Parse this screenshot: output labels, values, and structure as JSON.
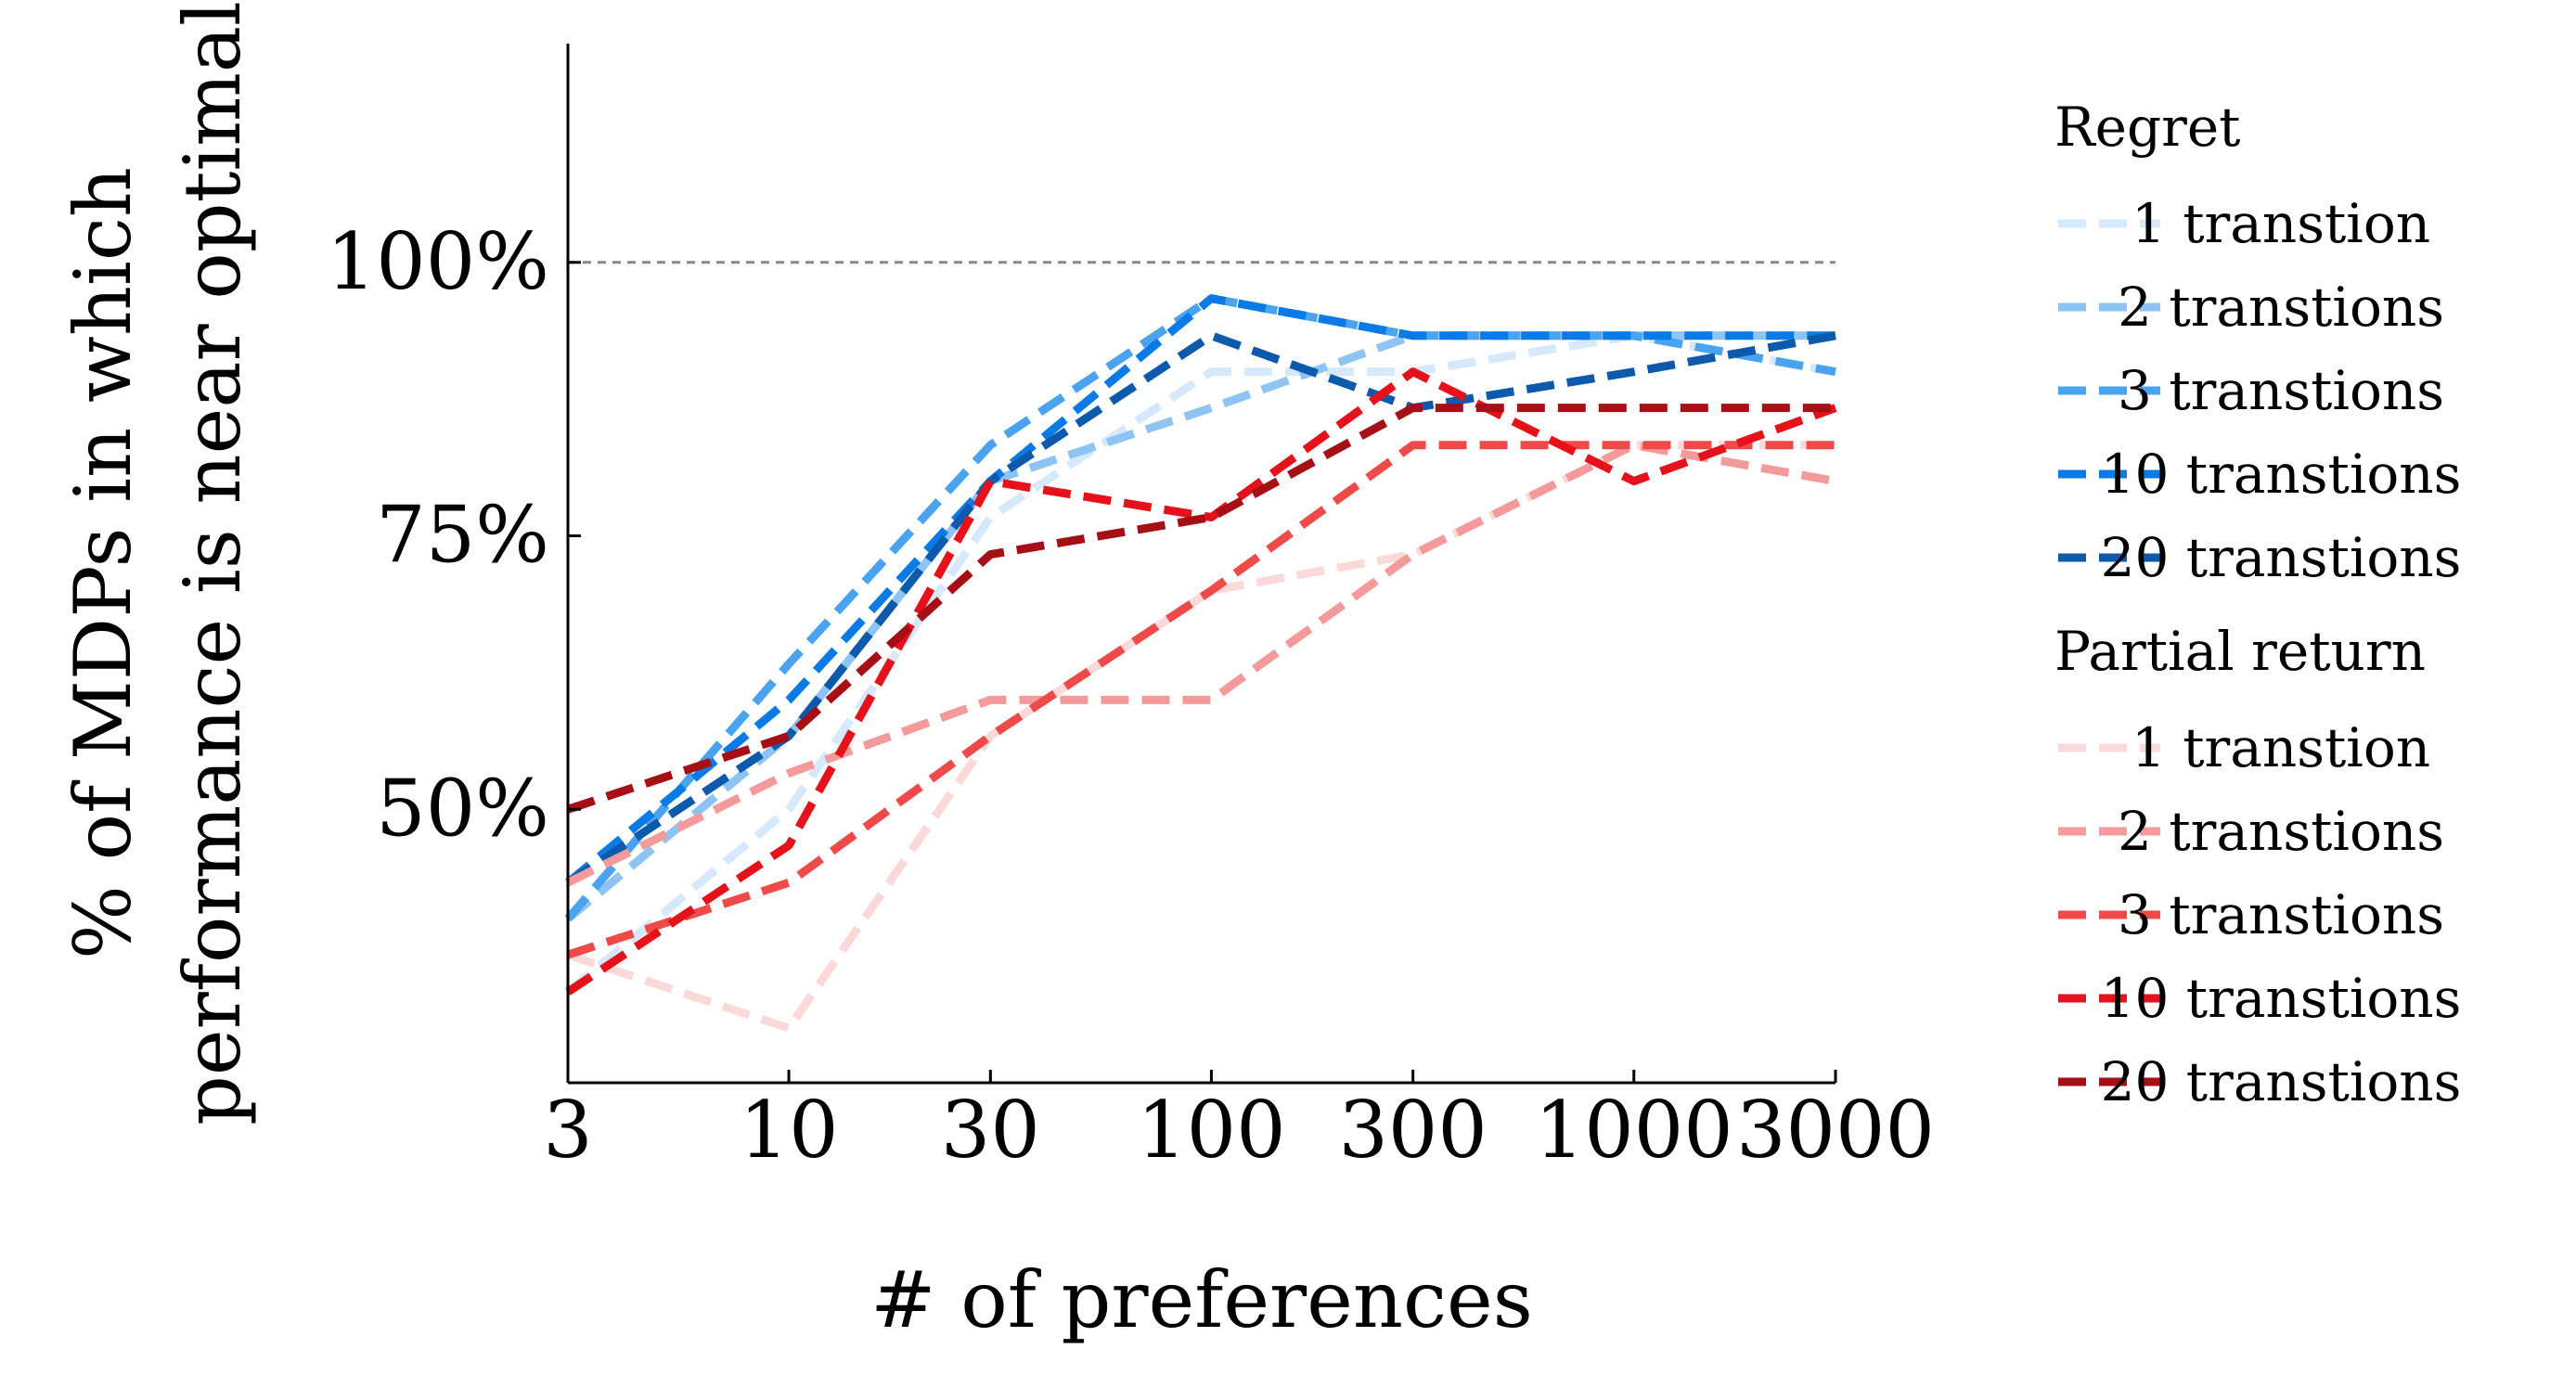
{
  "chart_data": {
    "type": "line",
    "title": "",
    "xlabel": "# of preferences",
    "ylabel_line1": "% of MDPs in which",
    "ylabel_line2": "performance is near optimal",
    "x_scale": "log",
    "x": [
      3,
      10,
      30,
      100,
      300,
      1000,
      3000
    ],
    "x_tick_labels": [
      "3",
      "10",
      "30",
      "100",
      "300",
      "1000",
      "3000"
    ],
    "ylim": [
      0.25,
      1.2
    ],
    "y_ticks": [
      0.5,
      0.75,
      1.0
    ],
    "y_tick_labels": [
      "50%",
      "75%",
      "100%"
    ],
    "reference_line": {
      "y": 1.0,
      "color": "#888888",
      "style": "dashed"
    },
    "legend_groups": [
      {
        "title": "Regret",
        "series_indices": [
          0,
          1,
          2,
          3,
          4
        ]
      },
      {
        "title": "Partial return",
        "series_indices": [
          5,
          6,
          7,
          8,
          9
        ]
      }
    ],
    "series": [
      {
        "group": "Regret",
        "name": "1 transtion",
        "color": "#d6e8fb",
        "values": [
          0.333,
          0.5,
          0.767,
          0.9,
          0.9,
          0.933,
          0.9
        ]
      },
      {
        "group": "Regret",
        "name": "2 transtions",
        "color": "#8ec4f3",
        "values": [
          0.4,
          0.567,
          0.8,
          0.867,
          0.933,
          0.933,
          0.933
        ]
      },
      {
        "group": "Regret",
        "name": "3 transtions",
        "color": "#4aa3ef",
        "values": [
          0.4,
          0.633,
          0.833,
          0.967,
          0.933,
          0.933,
          0.9
        ]
      },
      {
        "group": "Regret",
        "name": "10 transtions",
        "color": "#0a7be6",
        "values": [
          0.433,
          0.6,
          0.8,
          0.967,
          0.933,
          0.933,
          0.933
        ]
      },
      {
        "group": "Regret",
        "name": "20 transtions",
        "color": "#0d5aad",
        "values": [
          0.433,
          0.567,
          0.8,
          0.933,
          0.867,
          0.9,
          0.933
        ]
      },
      {
        "group": "Partial return",
        "name": "1 transtion",
        "color": "#fbd9d9",
        "values": [
          0.367,
          0.3,
          0.567,
          0.7,
          0.733,
          0.833,
          0.833
        ]
      },
      {
        "group": "Partial return",
        "name": "2 transtions",
        "color": "#f59a9a",
        "values": [
          0.433,
          0.533,
          0.6,
          0.6,
          0.733,
          0.833,
          0.8
        ]
      },
      {
        "group": "Partial return",
        "name": "3 transtions",
        "color": "#ef4a4a",
        "values": [
          0.367,
          0.433,
          0.567,
          0.7,
          0.833,
          0.833,
          0.833
        ]
      },
      {
        "group": "Partial return",
        "name": "10 transtions",
        "color": "#e5121b",
        "values": [
          0.333,
          0.467,
          0.8,
          0.767,
          0.9,
          0.8,
          0.867
        ]
      },
      {
        "group": "Partial return",
        "name": "20 transtions",
        "color": "#a50f15",
        "values": [
          0.5,
          0.567,
          0.733,
          0.767,
          0.867,
          0.867,
          0.867
        ]
      }
    ]
  }
}
